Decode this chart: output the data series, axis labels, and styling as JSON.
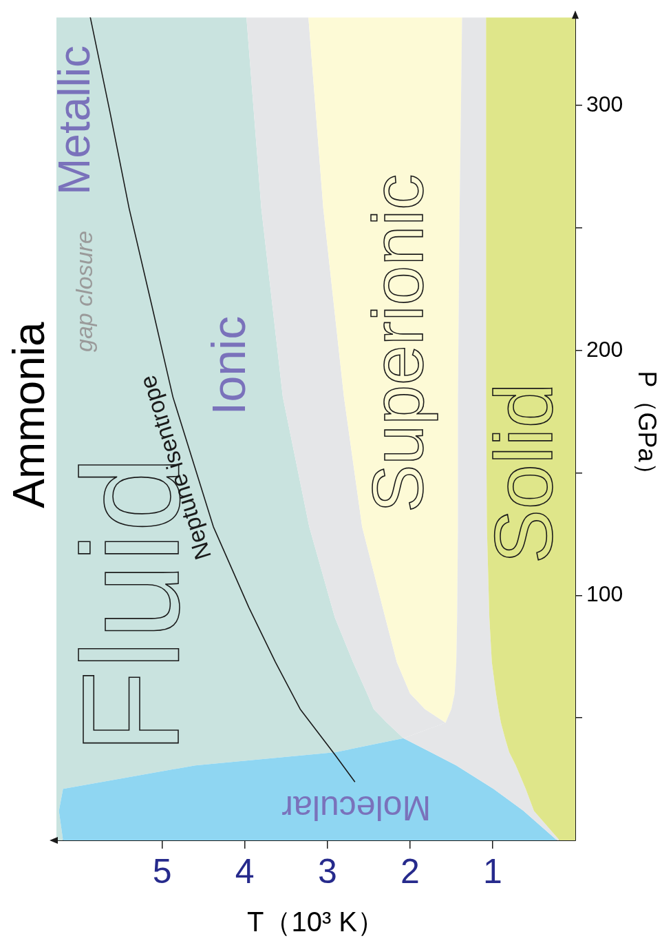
{
  "chart_data": {
    "type": "area",
    "title": "Ammonia",
    "xlabel": "T（10³ K）",
    "ylabel": "P（GPa）",
    "stacked": true,
    "orientation": "horizontal",
    "x": [
      0,
      12,
      21,
      30.6,
      36,
      41.7,
      48,
      53.6,
      60,
      72.8,
      91,
      128,
      181,
      258,
      336
    ],
    "xlim": [
      6.28,
      0
    ],
    "ylim": [
      0,
      336
    ],
    "xticks": [
      5,
      4,
      3,
      2,
      1
    ],
    "yticks": [
      {
        "value": 50,
        "label": null
      },
      100,
      {
        "value": 150,
        "label": null
      },
      200,
      {
        "value": 250,
        "label": null
      },
      300
    ],
    "series": [
      {
        "color": "#dfe68a",
        "values": [
          0.19,
          0.5,
          0.6,
          0.72,
          0.8,
          0.85,
          0.9,
          0.93,
          0.96,
          1.01,
          1.04,
          1.07,
          1.08,
          1.08,
          1.08
        ]
      },
      {
        "color": "#e5e6e8",
        "values": [
          0.03,
          0.125,
          0.39,
          0.72,
          0.95,
          1.23,
          0.67,
          0.57,
          0.5,
          0.43,
          0.39,
          0.35,
          0.34,
          0.32,
          0.29
        ]
      },
      {
        "color": "#fdfad6",
        "values": [
          0,
          0,
          0,
          0,
          0,
          0,
          0,
          0.32,
          0.54,
          0.72,
          0.87,
          1.16,
          1.38,
          1.65,
          1.86
        ]
      },
      {
        "color": "#e5e6e8",
        "values": [
          0,
          0,
          0,
          0,
          0,
          0,
          0.71,
          0.62,
          0.52,
          0.53,
          0.61,
          0.64,
          0.74,
          0.75,
          0.75
        ]
      },
      {
        "color": "#8fd6f2",
        "values": [
          5.98,
          5.625,
          5.21,
          3.16,
          1.15,
          0,
          0,
          0,
          0,
          0,
          0,
          0,
          0,
          0,
          0
        ]
      },
      {
        "color": "#c9e3df",
        "values": [
          0.08,
          0.03,
          0.08,
          1.68,
          3.38,
          4.2,
          4.0,
          3.84,
          3.76,
          3.59,
          3.37,
          3.06,
          2.74,
          2.48,
          2.3
        ]
      },
      {
        "type": "line",
        "name": "Neptune isentrope",
        "color": "#1a1a1a",
        "x": [
          24,
          35,
          53.6,
          72.8,
          95,
          128,
          181,
          219,
          258,
          297,
          336
        ],
        "values": [
          2.67,
          2.91,
          3.33,
          3.63,
          3.95,
          4.38,
          4.87,
          5.13,
          5.4,
          5.63,
          5.87
        ]
      }
    ],
    "annotations": [
      "Fluid",
      "Ionic",
      "Superionic",
      "Solid",
      "Metallic",
      "gap closure",
      "Molecular"
    ]
  }
}
